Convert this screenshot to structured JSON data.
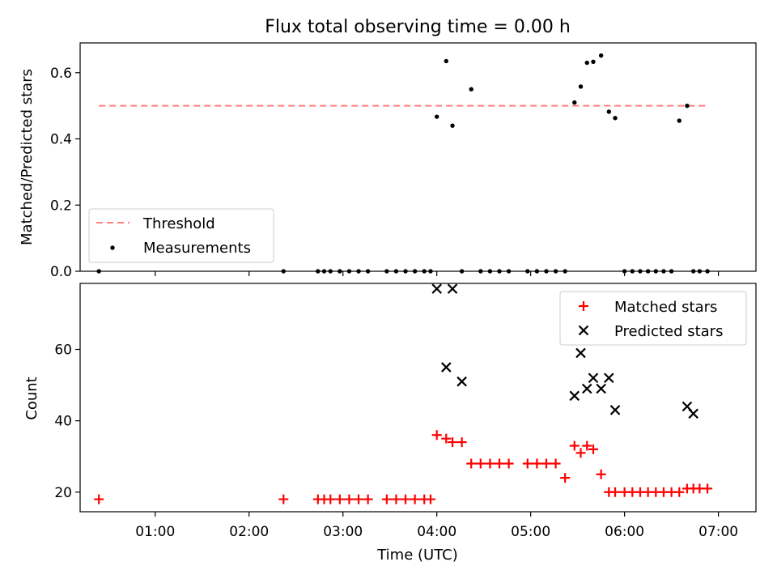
{
  "figure_title": "Flux total observing time = 0.00 h",
  "chart_data": [
    {
      "type": "scatter",
      "ylabel": "Matched/Predicted stars",
      "xlim": [
        "00:12",
        "07:24"
      ],
      "ylim": [
        0,
        0.69
      ],
      "yticks": [
        0.0,
        0.2,
        0.4,
        0.6
      ],
      "ytick_labels": [
        "0.0",
        "0.2",
        "0.4",
        "0.6"
      ],
      "grid": false,
      "legend_position": "lower-left",
      "threshold": {
        "name": "Threshold",
        "value": 0.5,
        "x_start": "00:24",
        "x_end": "06:54",
        "color": "#ff7f7f",
        "style": "dashed"
      },
      "series": [
        {
          "name": "Measurements",
          "color": "#000000",
          "marker": "dot",
          "x": [
            "00:24",
            "02:22",
            "02:44",
            "02:48",
            "02:52",
            "02:58",
            "03:04",
            "03:10",
            "03:16",
            "03:28",
            "03:34",
            "03:40",
            "03:46",
            "03:52",
            "03:56",
            "04:00",
            "04:06",
            "04:10",
            "04:16",
            "04:22",
            "04:28",
            "04:34",
            "04:40",
            "04:46",
            "04:58",
            "05:04",
            "05:10",
            "05:16",
            "05:22",
            "05:28",
            "05:32",
            "05:36",
            "05:40",
            "05:45",
            "05:50",
            "05:54",
            "06:00",
            "06:05",
            "06:10",
            "06:15",
            "06:20",
            "06:25",
            "06:30",
            "06:35",
            "06:40",
            "06:44",
            "06:48",
            "06:53"
          ],
          "y": [
            0,
            0,
            0,
            0,
            0,
            0,
            0,
            0,
            0,
            0,
            0,
            0,
            0,
            0,
            0,
            0.467,
            0.635,
            0.44,
            0,
            0.55,
            0,
            0,
            0,
            0,
            0,
            0,
            0,
            0,
            0,
            0.51,
            0.558,
            0.63,
            0.633,
            0.652,
            0.482,
            0.463,
            0,
            0,
            0,
            0,
            0,
            0,
            0,
            0.455,
            0.5,
            0,
            0,
            0
          ]
        }
      ]
    },
    {
      "type": "scatter",
      "xlabel": "Time (UTC)",
      "ylabel": "Count",
      "xlim": [
        "00:12",
        "07:24"
      ],
      "ylim": [
        14.5,
        78.5
      ],
      "xticks": [
        "01:00",
        "02:00",
        "03:00",
        "04:00",
        "05:00",
        "06:00",
        "07:00"
      ],
      "yticks": [
        20,
        40,
        60
      ],
      "ytick_labels": [
        "20",
        "40",
        "60"
      ],
      "grid": false,
      "legend_position": "top-right",
      "series": [
        {
          "name": "Matched stars",
          "color": "#ff0000",
          "marker": "plus",
          "x": [
            "00:24",
            "02:22",
            "02:44",
            "02:48",
            "02:52",
            "02:58",
            "03:04",
            "03:10",
            "03:16",
            "03:28",
            "03:34",
            "03:40",
            "03:46",
            "03:52",
            "03:56",
            "04:00",
            "04:06",
            "04:10",
            "04:16",
            "04:22",
            "04:28",
            "04:34",
            "04:40",
            "04:46",
            "04:58",
            "05:04",
            "05:10",
            "05:16",
            "05:22",
            "05:28",
            "05:32",
            "05:36",
            "05:40",
            "05:45",
            "05:50",
            "05:54",
            "06:00",
            "06:05",
            "06:10",
            "06:15",
            "06:20",
            "06:25",
            "06:30",
            "06:35",
            "06:40",
            "06:44",
            "06:48",
            "06:53"
          ],
          "y": [
            18,
            18,
            18,
            18,
            18,
            18,
            18,
            18,
            18,
            18,
            18,
            18,
            18,
            18,
            18,
            36,
            35,
            34,
            34,
            28,
            28,
            28,
            28,
            28,
            28,
            28,
            28,
            28,
            24,
            33,
            31,
            33,
            32,
            25,
            20,
            20,
            20,
            20,
            20,
            20,
            20,
            20,
            20,
            20,
            21,
            21,
            21,
            21
          ]
        },
        {
          "name": "Predicted stars",
          "color": "#000000",
          "marker": "x",
          "x": [
            "04:00",
            "04:06",
            "04:10",
            "04:16",
            "05:28",
            "05:32",
            "05:36",
            "05:40",
            "05:45",
            "05:50",
            "05:54",
            "06:40",
            "06:44"
          ],
          "y": [
            77,
            55,
            77,
            51,
            47,
            59,
            49,
            52,
            49,
            52,
            43,
            44,
            42
          ]
        }
      ]
    }
  ]
}
